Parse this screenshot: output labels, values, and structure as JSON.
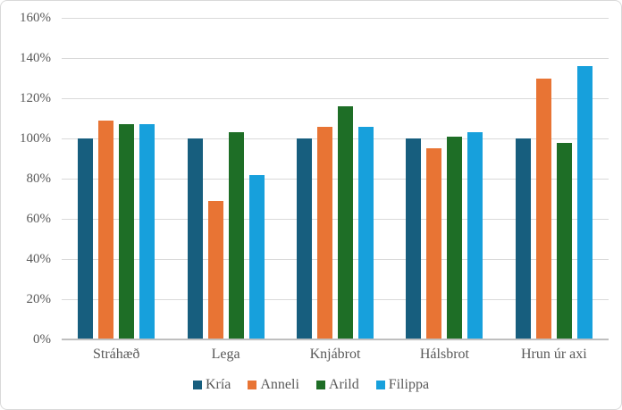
{
  "chart_data": {
    "type": "bar",
    "title": "",
    "xlabel": "",
    "ylabel": "",
    "categories": [
      "Stráhæð",
      "Lega",
      "Knjábrot",
      "Hálsbrot",
      "Hrun úr axi"
    ],
    "series": [
      {
        "name": "Kría",
        "color": "#175E7E",
        "values": [
          100,
          100,
          100,
          100,
          100
        ]
      },
      {
        "name": "Anneli",
        "color": "#E87434",
        "values": [
          109,
          69,
          106,
          95,
          130
        ]
      },
      {
        "name": "Arild",
        "color": "#1E6E26",
        "values": [
          107,
          103,
          116,
          101,
          98
        ]
      },
      {
        "name": "Filippa",
        "color": "#17A0DC",
        "values": [
          107,
          82,
          106,
          103,
          136
        ]
      }
    ],
    "ylim": [
      0,
      160
    ],
    "ytick_step": 20,
    "ytick_labels": [
      "0%",
      "20%",
      "40%",
      "60%",
      "80%",
      "100%",
      "120%",
      "140%",
      "160%"
    ],
    "grid": "horizontal",
    "legend_position": "bottom"
  },
  "style": {
    "background": "#FFFFFF",
    "frame_border_color": "#D9D9D9",
    "gridline_color": "#D9D9D9",
    "axis_line_color": "#BFBFBF",
    "text_color": "#595959"
  }
}
